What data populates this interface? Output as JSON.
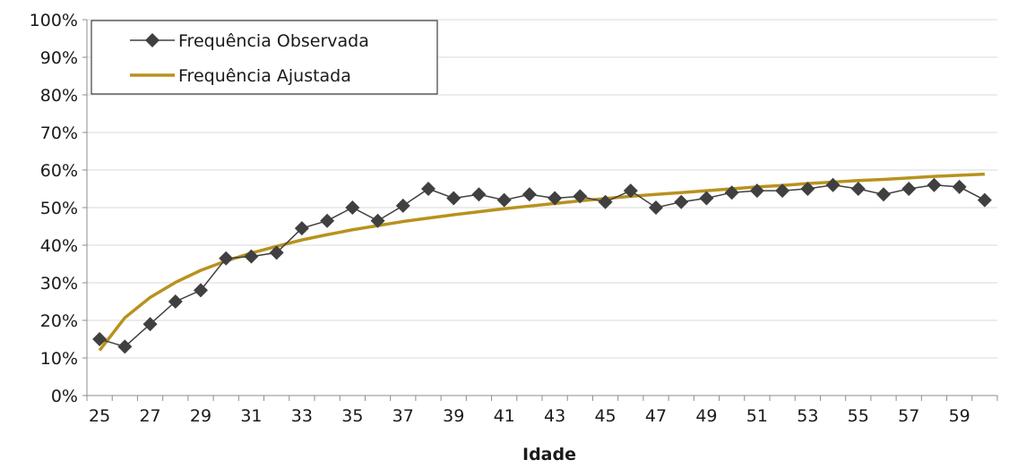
{
  "chart_data": {
    "type": "line",
    "title": "",
    "xlabel": "Idade",
    "ylabel": "",
    "x": [
      25,
      26,
      27,
      28,
      29,
      30,
      31,
      32,
      33,
      34,
      35,
      36,
      37,
      38,
      39,
      40,
      41,
      42,
      43,
      44,
      45,
      46,
      47,
      48,
      49,
      50,
      51,
      52,
      53,
      54,
      55,
      56,
      57,
      58,
      59,
      60
    ],
    "x_tick_labels": [
      "25",
      "27",
      "29",
      "31",
      "33",
      "35",
      "37",
      "39",
      "41",
      "43",
      "45",
      "47",
      "49",
      "51",
      "53",
      "55",
      "57",
      "59"
    ],
    "y_tick_labels": [
      "0%",
      "10%",
      "20%",
      "30%",
      "40%",
      "50%",
      "60%",
      "70%",
      "80%",
      "90%",
      "100%"
    ],
    "ylim": [
      0,
      100
    ],
    "y_unit": "%",
    "grid": true,
    "legend_position": "top-left",
    "series": [
      {
        "name": "Frequência Observada",
        "color": "#404040",
        "marker": "diamond",
        "values": [
          15,
          13,
          19,
          25,
          28,
          36.5,
          37,
          38,
          44.5,
          46.5,
          50,
          46.5,
          50.5,
          55,
          52.5,
          53.5,
          52,
          53.5,
          52.5,
          53,
          51.5,
          54.5,
          50,
          51.5,
          52.5,
          54,
          54.5,
          54.5,
          55,
          56,
          55,
          53.5,
          55,
          56,
          55.5,
          52
        ]
      },
      {
        "name": "Frequência Ajustada",
        "color": "#b8921e",
        "marker": "none",
        "values": [
          12,
          20.7,
          26.1,
          30.1,
          33.3,
          35.8,
          37.9,
          39.7,
          41.4,
          42.8,
          44.1,
          45.2,
          46.3,
          47.2,
          48.1,
          48.9,
          49.7,
          50.4,
          51.1,
          51.8,
          52.4,
          53.0,
          53.5,
          54.0,
          54.5,
          55.0,
          55.5,
          55.9,
          56.4,
          56.8,
          57.2,
          57.5,
          57.9,
          58.3,
          58.6,
          58.9
        ]
      }
    ]
  }
}
